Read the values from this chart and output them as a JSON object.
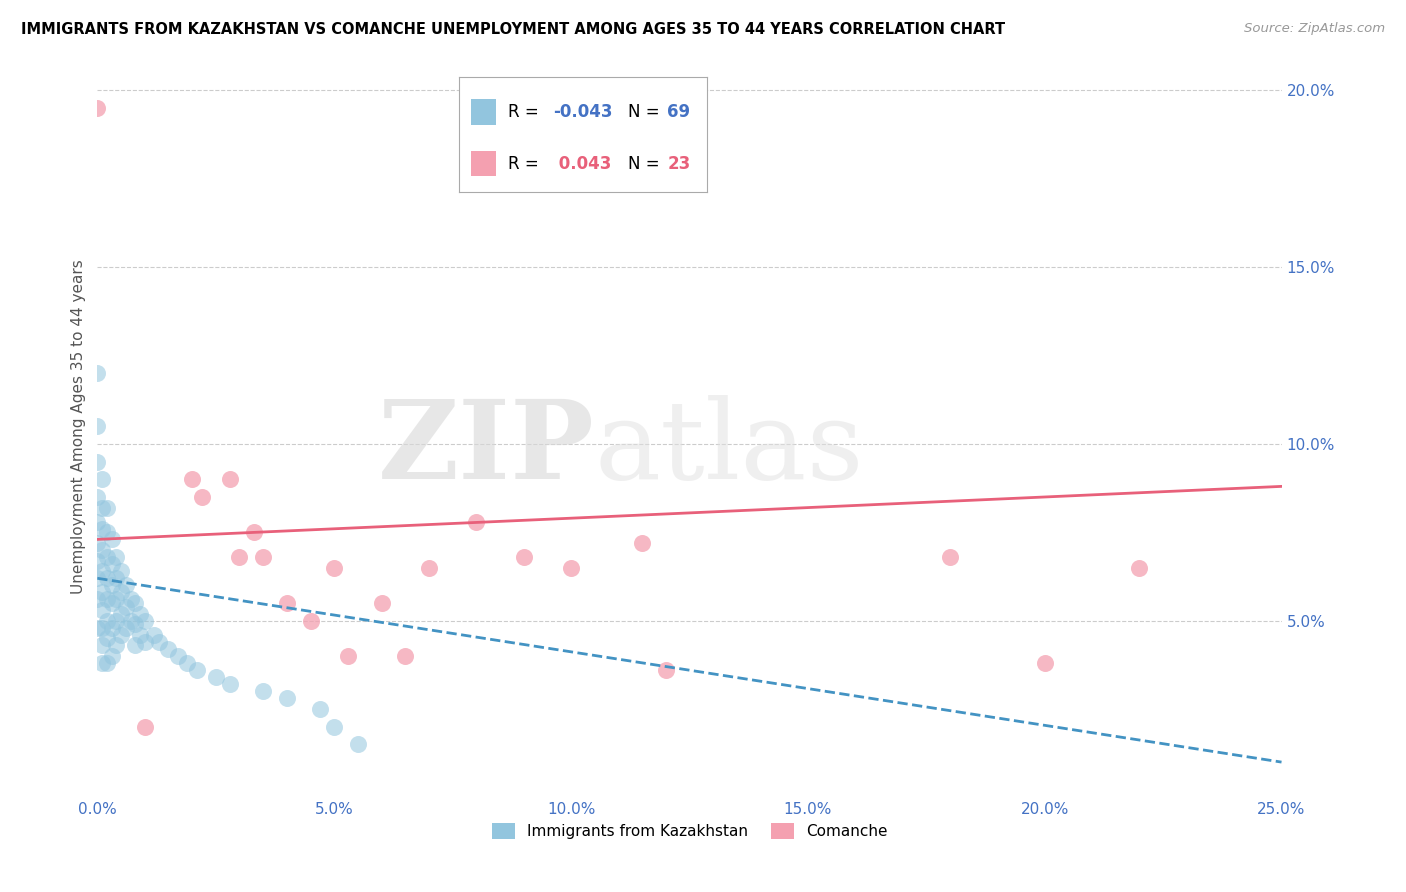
{
  "title": "IMMIGRANTS FROM KAZAKHSTAN VS COMANCHE UNEMPLOYMENT AMONG AGES 35 TO 44 YEARS CORRELATION CHART",
  "source": "Source: ZipAtlas.com",
  "ylabel": "Unemployment Among Ages 35 to 44 years",
  "xlim": [
    0.0,
    0.25
  ],
  "ylim": [
    0.0,
    0.21
  ],
  "xticks": [
    0.0,
    0.05,
    0.1,
    0.15,
    0.2,
    0.25
  ],
  "xticklabels": [
    "0.0%",
    "5.0%",
    "10.0%",
    "15.0%",
    "20.0%",
    "25.0%"
  ],
  "yticks_right": [
    0.05,
    0.1,
    0.15,
    0.2
  ],
  "yticklabels_right": [
    "5.0%",
    "10.0%",
    "15.0%",
    "20.0%"
  ],
  "color_blue": "#92c5de",
  "color_pink": "#f4a0b0",
  "color_blue_line": "#4393c3",
  "color_pink_line": "#e8607a",
  "legend_labels": [
    "Immigrants from Kazakhstan",
    "Comanche"
  ],
  "blue_scatter_x": [
    0.0,
    0.0,
    0.0,
    0.0,
    0.0,
    0.0,
    0.0,
    0.0,
    0.0,
    0.0,
    0.001,
    0.001,
    0.001,
    0.001,
    0.001,
    0.001,
    0.001,
    0.001,
    0.001,
    0.001,
    0.002,
    0.002,
    0.002,
    0.002,
    0.002,
    0.002,
    0.002,
    0.002,
    0.003,
    0.003,
    0.003,
    0.003,
    0.003,
    0.003,
    0.004,
    0.004,
    0.004,
    0.004,
    0.004,
    0.005,
    0.005,
    0.005,
    0.005,
    0.006,
    0.006,
    0.006,
    0.007,
    0.007,
    0.008,
    0.008,
    0.008,
    0.009,
    0.009,
    0.01,
    0.01,
    0.012,
    0.013,
    0.015,
    0.017,
    0.019,
    0.021,
    0.025,
    0.028,
    0.035,
    0.04,
    0.047,
    0.05,
    0.055
  ],
  "blue_scatter_y": [
    0.12,
    0.105,
    0.095,
    0.085,
    0.078,
    0.072,
    0.067,
    0.062,
    0.056,
    0.048,
    0.09,
    0.082,
    0.076,
    0.07,
    0.064,
    0.058,
    0.053,
    0.048,
    0.043,
    0.038,
    0.082,
    0.075,
    0.068,
    0.062,
    0.056,
    0.05,
    0.045,
    0.038,
    0.073,
    0.066,
    0.06,
    0.055,
    0.048,
    0.04,
    0.068,
    0.062,
    0.056,
    0.05,
    0.043,
    0.064,
    0.058,
    0.052,
    0.046,
    0.06,
    0.054,
    0.048,
    0.056,
    0.05,
    0.055,
    0.049,
    0.043,
    0.052,
    0.046,
    0.05,
    0.044,
    0.046,
    0.044,
    0.042,
    0.04,
    0.038,
    0.036,
    0.034,
    0.032,
    0.03,
    0.028,
    0.025,
    0.02,
    0.015
  ],
  "pink_scatter_x": [
    0.0,
    0.01,
    0.02,
    0.022,
    0.028,
    0.03,
    0.033,
    0.035,
    0.04,
    0.045,
    0.05,
    0.053,
    0.06,
    0.065,
    0.07,
    0.08,
    0.09,
    0.1,
    0.115,
    0.12,
    0.18,
    0.2,
    0.22
  ],
  "pink_scatter_y": [
    0.195,
    0.02,
    0.09,
    0.085,
    0.09,
    0.068,
    0.075,
    0.068,
    0.055,
    0.05,
    0.065,
    0.04,
    0.055,
    0.04,
    0.065,
    0.078,
    0.068,
    0.065,
    0.072,
    0.036,
    0.068,
    0.038,
    0.065
  ],
  "blue_trend_x": [
    0.0,
    0.25
  ],
  "blue_trend_y": [
    0.062,
    0.01
  ],
  "pink_trend_x": [
    0.0,
    0.25
  ],
  "pink_trend_y": [
    0.073,
    0.088
  ]
}
